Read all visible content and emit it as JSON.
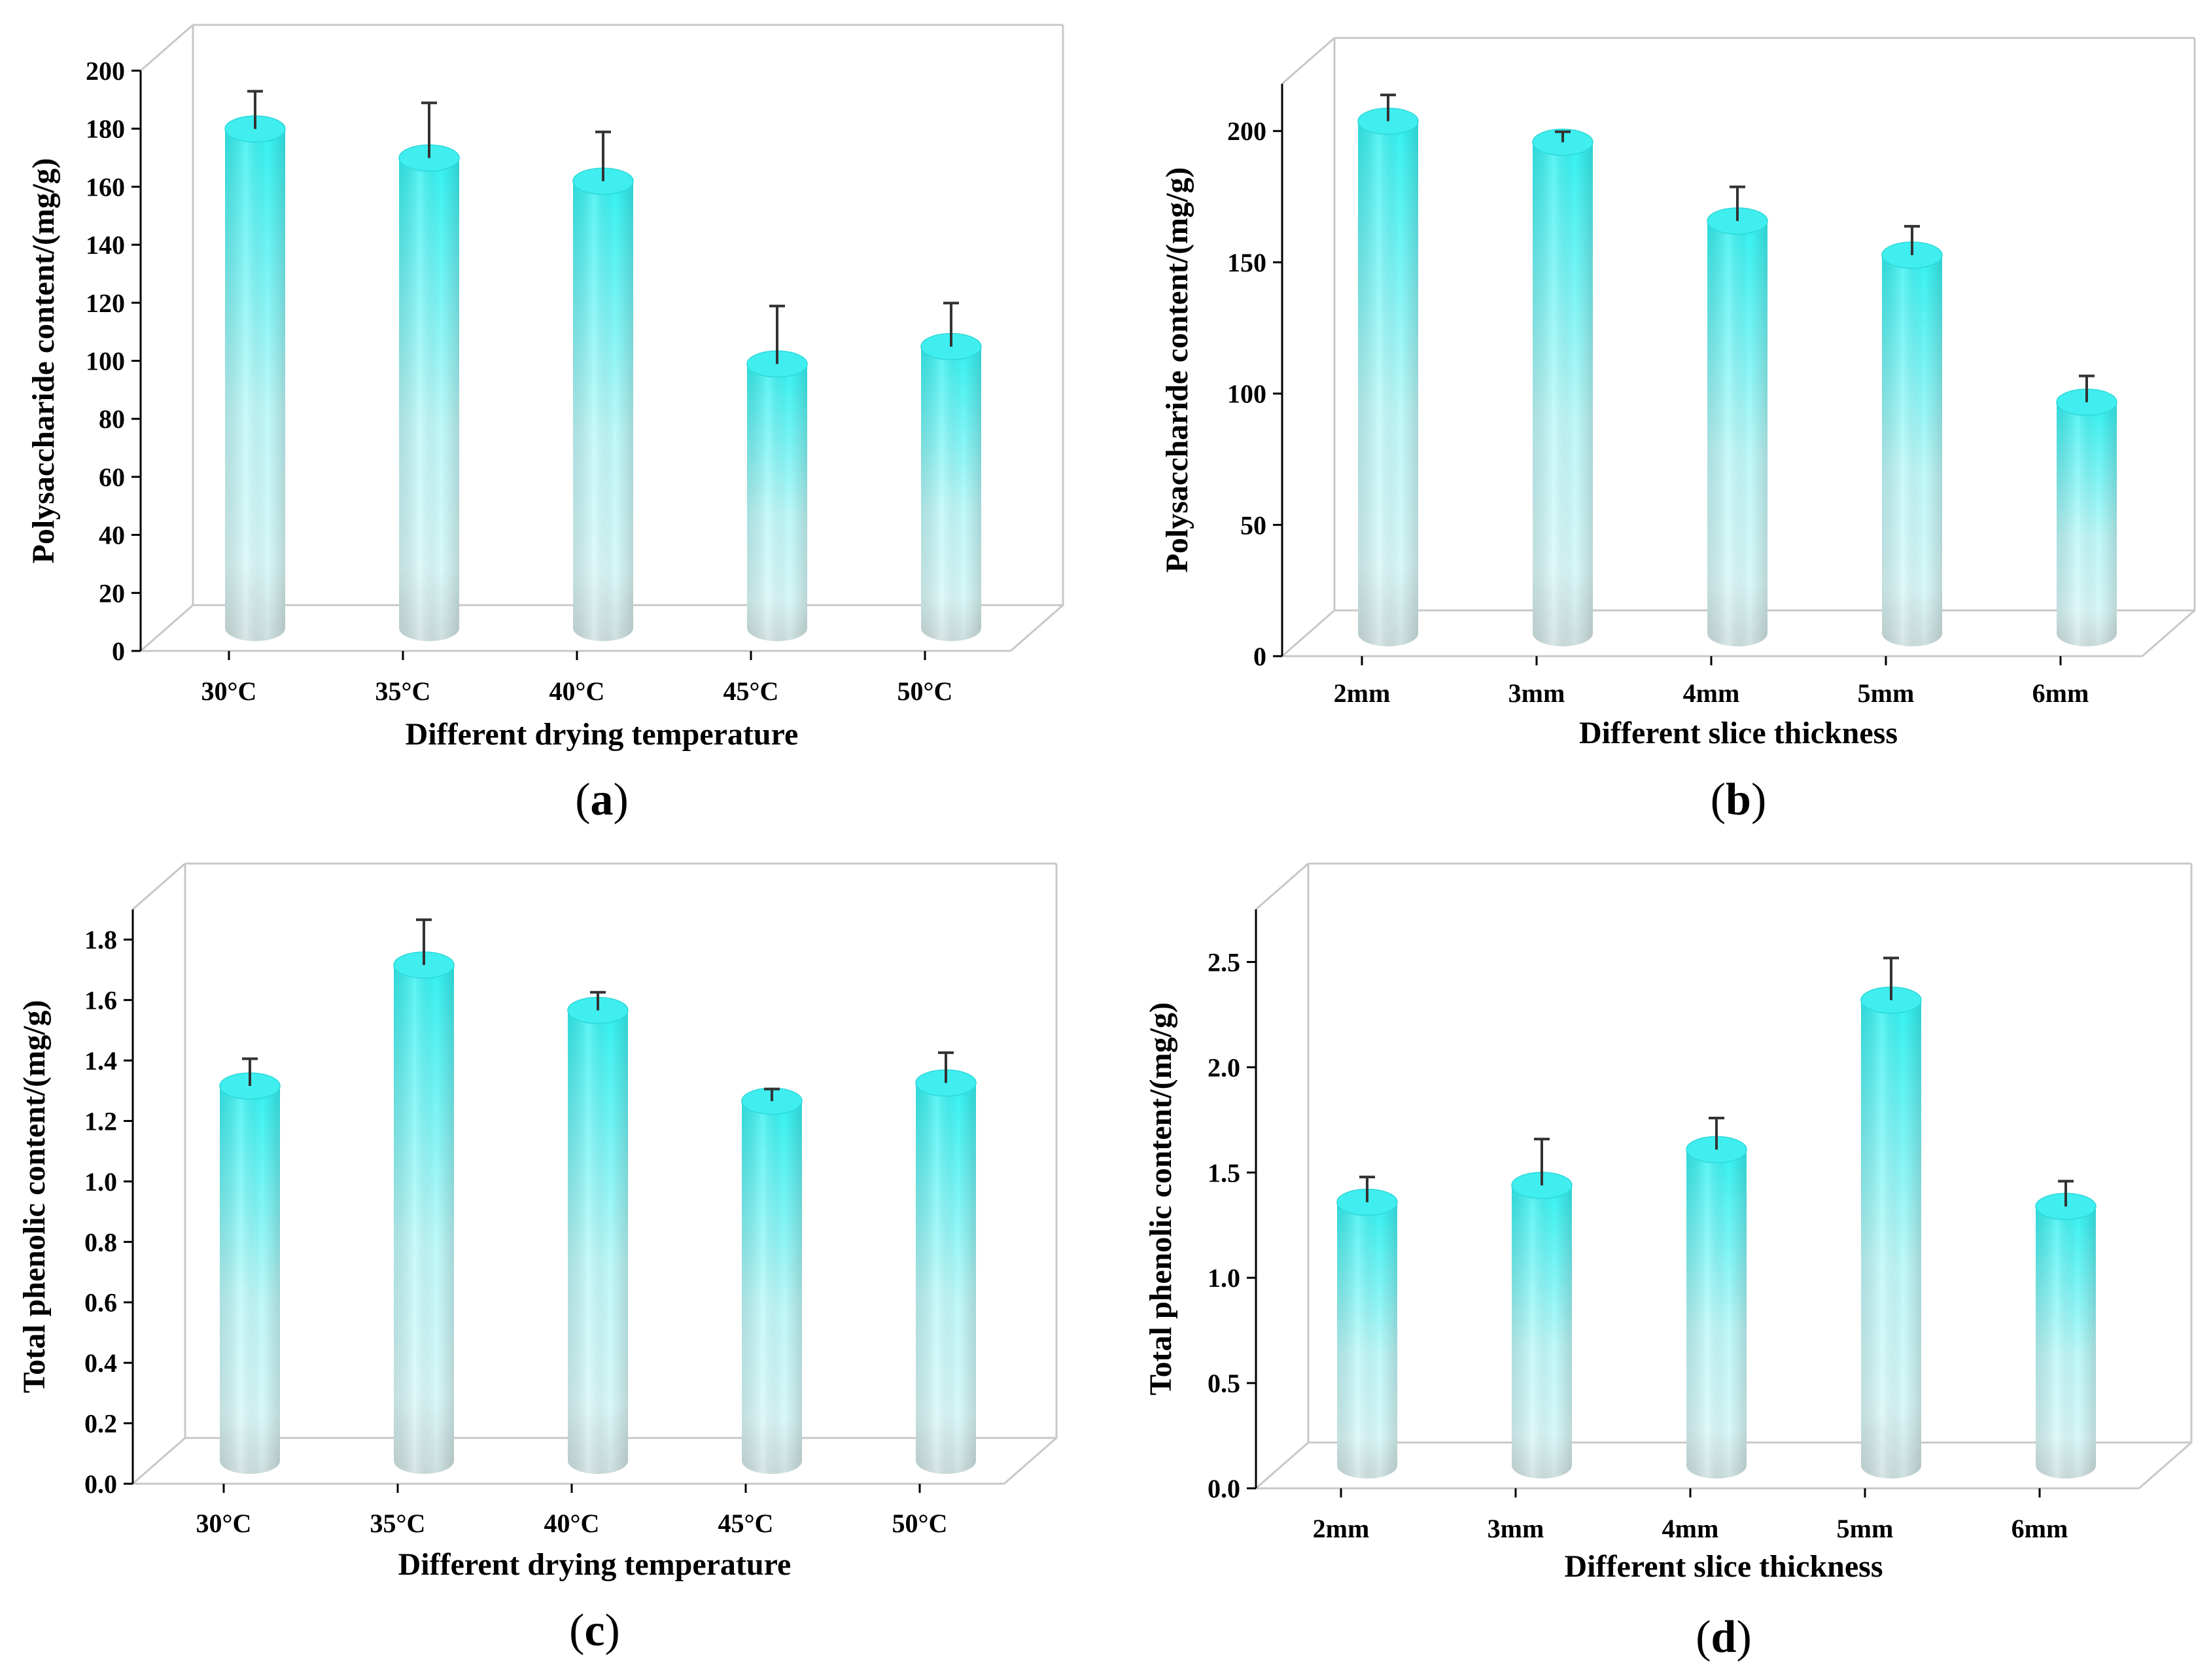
{
  "colors": {
    "bar_top": "#33f2f2",
    "bar_mid": "#bff9fa",
    "bar_bottom": "#d6e6e6",
    "bar_cap": "#40eeef",
    "frame": "#c8c8c8",
    "axis": "#000000",
    "error_bar": "#333333"
  },
  "chart_data": [
    {
      "id": "a",
      "type": "bar",
      "panel_label": "a",
      "categories": [
        "30°C",
        "35°C",
        "40°C",
        "45°C",
        "50°C"
      ],
      "values": [
        172,
        162,
        154,
        91,
        97
      ],
      "errors": [
        13,
        19,
        17,
        20,
        15
      ],
      "xlabel": "Different drying temperature",
      "ylabel": "Polysaccharide content/(mg/g)",
      "ylim": [
        0,
        200
      ],
      "yticks": [
        0,
        20,
        40,
        60,
        80,
        100,
        120,
        140,
        160,
        180,
        200
      ],
      "ytick_labels": [
        "0",
        "20",
        "40",
        "60",
        "80",
        "100",
        "120",
        "140",
        "160",
        "180",
        "200"
      ]
    },
    {
      "id": "b",
      "type": "bar",
      "panel_label": "b",
      "categories": [
        "2mm",
        "3mm",
        "4mm",
        "5mm",
        "6mm"
      ],
      "values": [
        195,
        187,
        157,
        144,
        88
      ],
      "errors": [
        10,
        4,
        13,
        11,
        10
      ],
      "xlabel": "Different slice thickness",
      "ylabel": "Polysaccharide content/(mg/g)",
      "ylim": [
        0,
        218
      ],
      "yticks": [
        0,
        50,
        100,
        150,
        200
      ],
      "ytick_labels": [
        "0",
        "50",
        "100",
        "150",
        "200"
      ]
    },
    {
      "id": "c",
      "type": "bar",
      "panel_label": "c",
      "categories": [
        "30°C",
        "35°C",
        "40°C",
        "45°C",
        "50°C"
      ],
      "values": [
        1.24,
        1.64,
        1.49,
        1.19,
        1.25
      ],
      "errors": [
        0.09,
        0.15,
        0.06,
        0.04,
        0.1
      ],
      "xlabel": "Different drying temperature",
      "ylabel": "Total phenolic content/(mg/g)",
      "ylim": [
        0,
        1.9
      ],
      "yticks": [
        0,
        0.2,
        0.4,
        0.6,
        0.8,
        1.0,
        1.2,
        1.4,
        1.6,
        1.8
      ],
      "ytick_labels": [
        "0.0",
        "0.2",
        "0.4",
        "0.6",
        "0.8",
        "1.0",
        "1.2",
        "1.4",
        "1.6",
        "1.8"
      ]
    },
    {
      "id": "d",
      "type": "bar",
      "panel_label": "d",
      "categories": [
        "2mm",
        "3mm",
        "4mm",
        "5mm",
        "6mm"
      ],
      "values": [
        1.25,
        1.33,
        1.5,
        2.21,
        1.23
      ],
      "errors": [
        0.12,
        0.22,
        0.15,
        0.2,
        0.12
      ],
      "xlabel": "Different slice thickness",
      "ylabel": "Total phenolic content/(mg/g)",
      "ylim": [
        0,
        2.75
      ],
      "yticks": [
        0,
        0.5,
        1.0,
        1.5,
        2.0,
        2.5
      ],
      "ytick_labels": [
        "0.0",
        "0.5",
        "1.0",
        "1.5",
        "2.0",
        "2.5"
      ]
    }
  ]
}
